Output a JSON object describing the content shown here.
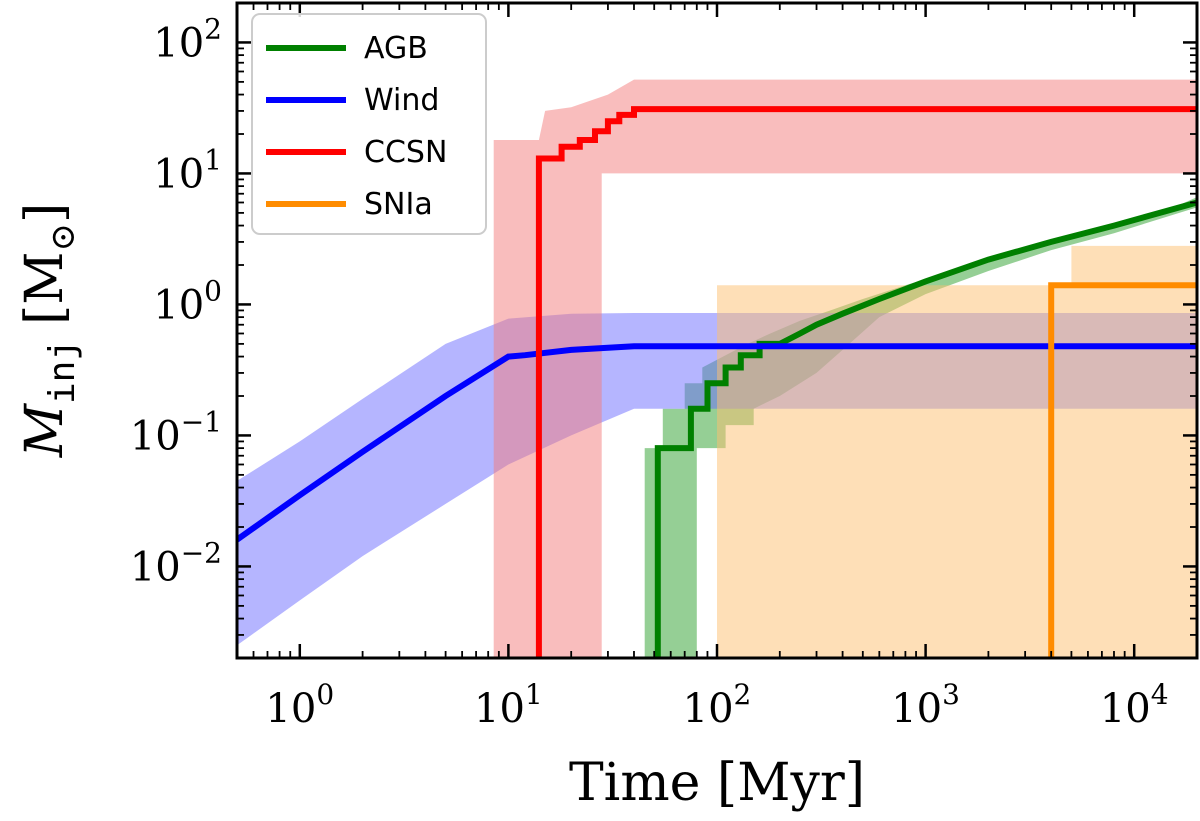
{
  "chart_data": {
    "type": "line",
    "xscale": "log",
    "yscale": "log",
    "xlim": [
      0.5,
      20000
    ],
    "ylim": [
      0.002,
      200
    ],
    "xlabel": "Time [Myr]",
    "ylabel_main": "M",
    "ylabel_sub": "inj",
    "ylabel_unit": "[M",
    "ylabel_unit_close": "]",
    "sun_symbol": "⊙",
    "x_ticks": [
      {
        "value": 1,
        "base": "10",
        "exp": "0"
      },
      {
        "value": 10,
        "base": "10",
        "exp": "1"
      },
      {
        "value": 100,
        "base": "10",
        "exp": "2"
      },
      {
        "value": 1000,
        "base": "10",
        "exp": "3"
      },
      {
        "value": 10000,
        "base": "10",
        "exp": "4"
      }
    ],
    "y_ticks": [
      {
        "value": 0.01,
        "base": "10",
        "exp": "−2"
      },
      {
        "value": 0.1,
        "base": "10",
        "exp": "−1"
      },
      {
        "value": 1,
        "base": "10",
        "exp": "0"
      },
      {
        "value": 10,
        "base": "10",
        "exp": "1"
      },
      {
        "value": 100,
        "base": "10",
        "exp": "2"
      }
    ],
    "legend_position": "top-left",
    "series": [
      {
        "name": "AGB",
        "color": "#008000",
        "band_color": "#2ca02c",
        "line": [
          [
            52,
            0.002
          ],
          [
            52,
            0.08
          ],
          [
            60,
            0.08
          ],
          [
            60,
            0.08
          ],
          [
            75,
            0.08
          ],
          [
            75,
            0.16
          ],
          [
            90,
            0.16
          ],
          [
            90,
            0.25
          ],
          [
            110,
            0.25
          ],
          [
            110,
            0.33
          ],
          [
            130,
            0.33
          ],
          [
            130,
            0.41
          ],
          [
            160,
            0.41
          ],
          [
            160,
            0.5
          ],
          [
            200,
            0.5
          ],
          [
            250,
            0.6
          ],
          [
            300,
            0.7
          ],
          [
            400,
            0.85
          ],
          [
            600,
            1.1
          ],
          [
            1000,
            1.5
          ],
          [
            2000,
            2.2
          ],
          [
            4000,
            3.0
          ],
          [
            8000,
            4.0
          ],
          [
            20000,
            6.0
          ]
        ],
        "band_lower": [
          [
            45,
            0.002
          ],
          [
            45,
            0.002
          ],
          [
            65,
            0.002
          ],
          [
            65,
            0.002
          ],
          [
            80,
            0.002
          ],
          [
            80,
            0.08
          ],
          [
            110,
            0.08
          ],
          [
            110,
            0.12
          ],
          [
            150,
            0.12
          ],
          [
            150,
            0.16
          ],
          [
            200,
            0.2
          ],
          [
            300,
            0.3
          ],
          [
            400,
            0.45
          ],
          [
            600,
            0.8
          ],
          [
            1000,
            1.2
          ],
          [
            2000,
            1.8
          ],
          [
            4000,
            2.6
          ],
          [
            8000,
            3.5
          ],
          [
            20000,
            5.5
          ]
        ],
        "band_upper": [
          [
            45,
            0.08
          ],
          [
            55,
            0.08
          ],
          [
            55,
            0.16
          ],
          [
            70,
            0.16
          ],
          [
            70,
            0.25
          ],
          [
            85,
            0.25
          ],
          [
            85,
            0.33
          ],
          [
            110,
            0.41
          ],
          [
            140,
            0.5
          ],
          [
            180,
            0.6
          ],
          [
            250,
            0.75
          ],
          [
            350,
            0.9
          ],
          [
            500,
            1.1
          ],
          [
            800,
            1.4
          ],
          [
            1500,
            1.9
          ],
          [
            3000,
            2.6
          ],
          [
            6000,
            3.5
          ],
          [
            12000,
            4.6
          ],
          [
            20000,
            6.6
          ]
        ]
      },
      {
        "name": "Wind",
        "color": "#0000ff",
        "band_color": "#6b6bff",
        "line": [
          [
            0.5,
            0.016
          ],
          [
            1,
            0.035
          ],
          [
            2,
            0.075
          ],
          [
            5,
            0.2
          ],
          [
            10,
            0.4
          ],
          [
            12,
            0.41
          ],
          [
            20,
            0.45
          ],
          [
            40,
            0.48
          ],
          [
            20000,
            0.48
          ]
        ],
        "band_lower": [
          [
            0.5,
            0.0025
          ],
          [
            1,
            0.0055
          ],
          [
            2,
            0.012
          ],
          [
            5,
            0.03
          ],
          [
            10,
            0.06
          ],
          [
            20,
            0.1
          ],
          [
            40,
            0.16
          ],
          [
            20000,
            0.16
          ]
        ],
        "band_upper": [
          [
            0.5,
            0.045
          ],
          [
            1,
            0.09
          ],
          [
            2,
            0.19
          ],
          [
            5,
            0.5
          ],
          [
            10,
            0.78
          ],
          [
            20,
            0.85
          ],
          [
            40,
            0.86
          ],
          [
            20000,
            0.86
          ]
        ]
      },
      {
        "name": "CCSN",
        "color": "#ff0000",
        "band_color": "#f47c7c",
        "line": [
          [
            14,
            0.002
          ],
          [
            14,
            13
          ],
          [
            18,
            13
          ],
          [
            18,
            16
          ],
          [
            22,
            16
          ],
          [
            22,
            18
          ],
          [
            26,
            18
          ],
          [
            26,
            21
          ],
          [
            30,
            21
          ],
          [
            30,
            25
          ],
          [
            34,
            25
          ],
          [
            34,
            28
          ],
          [
            40,
            28
          ],
          [
            40,
            31
          ],
          [
            20000,
            31
          ]
        ],
        "band_lower": [
          [
            8.5,
            0.002
          ],
          [
            28,
            0.002
          ],
          [
            28,
            10
          ],
          [
            20000,
            10
          ]
        ],
        "band_upper": [
          [
            8.5,
            18
          ],
          [
            14,
            18
          ],
          [
            15,
            30
          ],
          [
            20,
            32
          ],
          [
            30,
            40
          ],
          [
            40,
            52
          ],
          [
            20000,
            52
          ]
        ]
      },
      {
        "name": "SNIa",
        "color": "#ff8c00",
        "band_color": "#fdbf6f",
        "line": [
          [
            4000,
            0.002
          ],
          [
            4000,
            1.4
          ],
          [
            20000,
            1.4
          ]
        ],
        "band_lower": [
          [
            100,
            0.002
          ],
          [
            20000,
            0.002
          ]
        ],
        "band_upper": [
          [
            100,
            1.4
          ],
          [
            5000,
            1.4
          ],
          [
            5000,
            2.8
          ],
          [
            20000,
            2.8
          ]
        ]
      }
    ]
  }
}
